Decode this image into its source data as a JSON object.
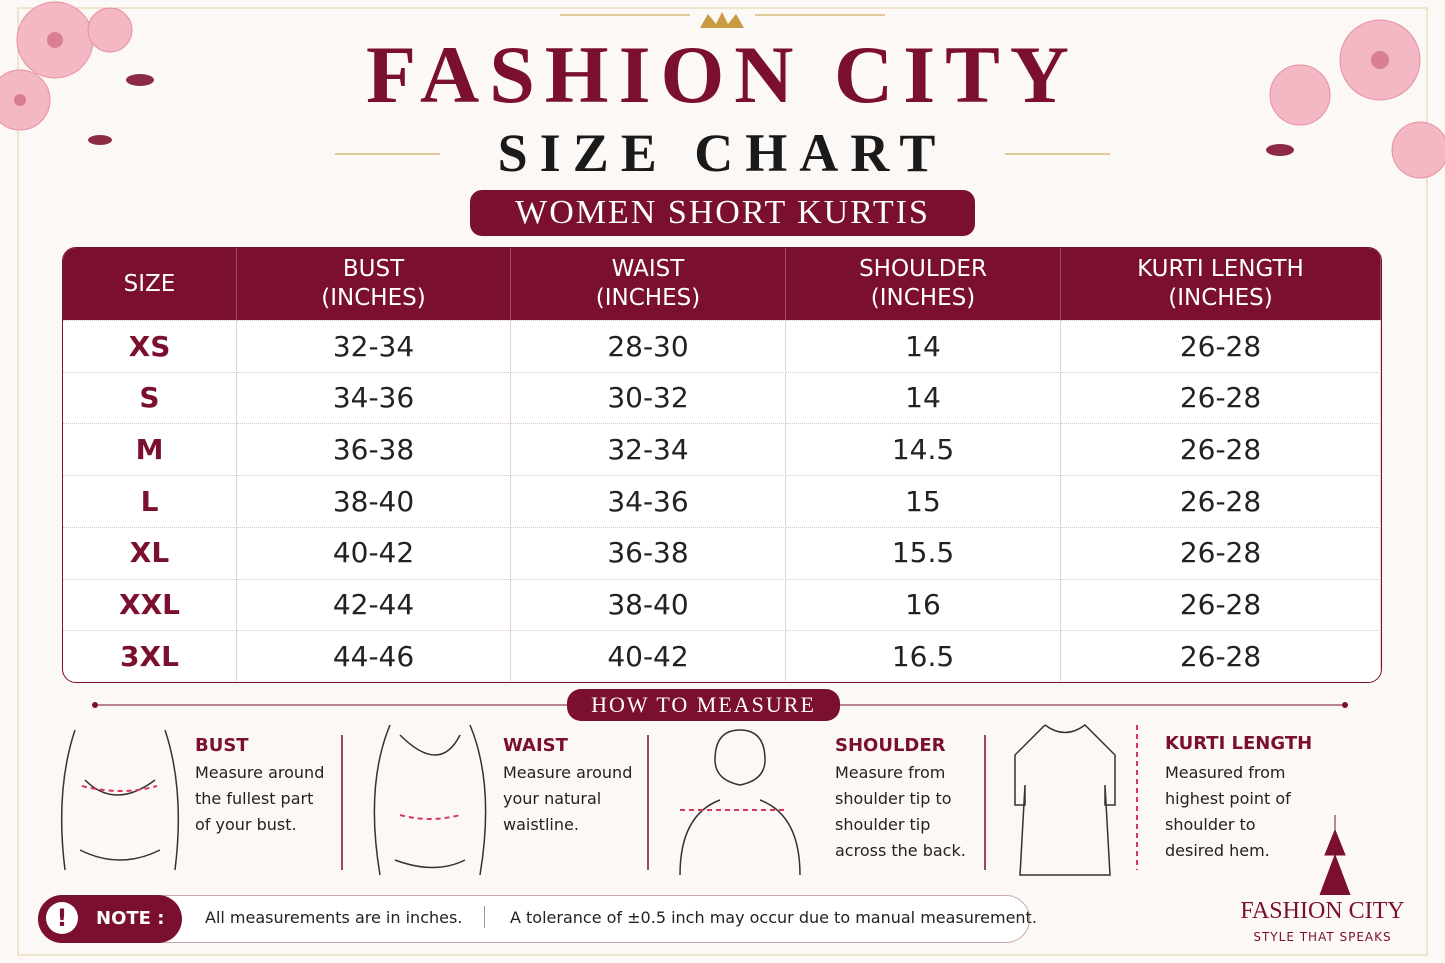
{
  "header": {
    "title": "FASHION CITY",
    "subtitle": "SIZE CHART",
    "banner": "WOMEN SHORT KURTIS"
  },
  "table": {
    "columns": [
      [
        "SIZE"
      ],
      [
        "BUST",
        "(INCHES)"
      ],
      [
        "WAIST",
        "(INCHES)"
      ],
      [
        "SHOULDER",
        "(INCHES)"
      ],
      [
        "KURTI LENGTH",
        "(INCHES)"
      ]
    ],
    "rows": [
      [
        "XS",
        "32-34",
        "28-30",
        "14",
        "26-28"
      ],
      [
        "S",
        "34-36",
        "30-32",
        "14",
        "26-28"
      ],
      [
        "M",
        "36-38",
        "32-34",
        "14.5",
        "26-28"
      ],
      [
        "L",
        "38-40",
        "34-36",
        "15",
        "26-28"
      ],
      [
        "XL",
        "40-42",
        "36-38",
        "15.5",
        "26-28"
      ],
      [
        "XXL",
        "42-44",
        "38-40",
        "16",
        "26-28"
      ],
      [
        "3XL",
        "44-46",
        "40-42",
        "16.5",
        "26-28"
      ]
    ]
  },
  "measure": {
    "title": "HOW TO MEASURE",
    "items": [
      {
        "label": "BUST",
        "text": [
          "Measure around",
          "the fullest part",
          "of your bust."
        ]
      },
      {
        "label": "WAIST",
        "text": [
          "Measure around",
          "your natural",
          "waistline."
        ]
      },
      {
        "label": "SHOULDER",
        "text": [
          "Measure from",
          "shoulder tip to",
          "shoulder tip",
          "across the back."
        ]
      },
      {
        "label": "KURTI LENGTH",
        "text": [
          "Measured from",
          "highest point of",
          "shoulder to",
          "desired hem."
        ]
      }
    ]
  },
  "note": {
    "label": "NOTE :",
    "items": [
      "All measurements are in inches.",
      "A tolerance of ±0.5 inch may occur due to manual measurement."
    ]
  },
  "brand": {
    "name": "FASHION CITY",
    "tagline": "STYLE THAT SPEAKS"
  }
}
